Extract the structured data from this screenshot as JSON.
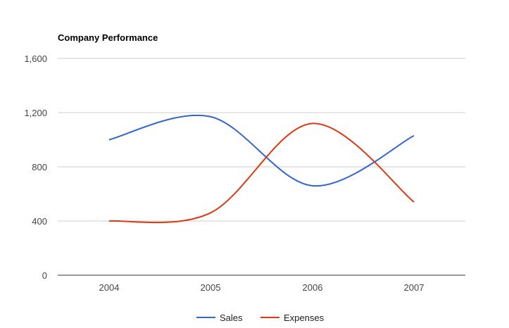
{
  "chart_data": {
    "type": "line",
    "title": "Company Performance",
    "xlabel": "",
    "ylabel": "",
    "categories": [
      "2004",
      "2005",
      "2006",
      "2007"
    ],
    "ylim": [
      0,
      1600
    ],
    "yticks": [
      0,
      400,
      800,
      1200,
      1600
    ],
    "ytick_labels": [
      "0",
      "400",
      "800",
      "1,200",
      "1,600"
    ],
    "grid": true,
    "curve": "smooth",
    "legend_position": "bottom",
    "series": [
      {
        "name": "Sales",
        "color": "#3366cc",
        "values": [
          1000,
          1170,
          660,
          1030
        ]
      },
      {
        "name": "Expenses",
        "color": "#dc3912",
        "values": [
          400,
          460,
          1120,
          540
        ]
      }
    ]
  }
}
